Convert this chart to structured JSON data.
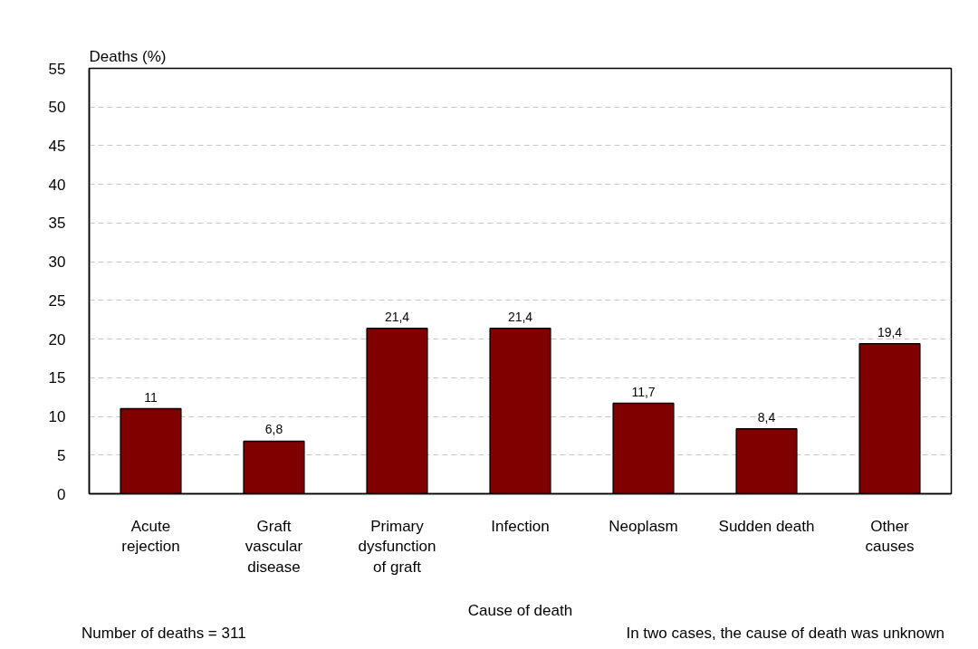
{
  "chart_data": {
    "type": "bar",
    "xlabel": "Cause of death",
    "ylabel": "Deaths (%)",
    "categories": [
      "Acute\nrejection",
      "Graft\nvascular\ndisease",
      "Primary\ndysfunction\nof graft",
      "Infection",
      "Neoplasm",
      "Sudden death",
      "Other\ncauses"
    ],
    "values": [
      11,
      6.8,
      21.4,
      21.4,
      11.7,
      8.4,
      19.4
    ],
    "value_labels": [
      "11",
      "6,8",
      "21,4",
      "21,4",
      "11,7",
      "8,4",
      "19,4"
    ],
    "color": "#800000",
    "ylim": [
      0,
      55
    ],
    "yticks": [
      0,
      5,
      10,
      15,
      20,
      25,
      30,
      35,
      40,
      45,
      50,
      55
    ],
    "grid": "y",
    "annotations": [
      "Number of deaths = 311",
      "In two cases, the cause of death was unknown"
    ]
  }
}
